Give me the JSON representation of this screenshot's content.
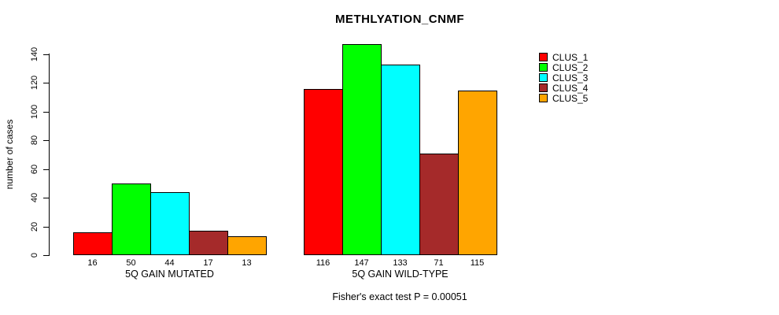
{
  "chart_data": {
    "type": "bar",
    "title": "METHLYATION_CNMF",
    "ylabel": "number of cases",
    "xlabel": "",
    "groups": [
      {
        "label": "5Q GAIN MUTATED",
        "values": [
          16,
          50,
          44,
          17,
          13
        ]
      },
      {
        "label": "5Q GAIN WILD-TYPE",
        "values": [
          116,
          147,
          133,
          71,
          115
        ]
      }
    ],
    "series": [
      {
        "name": "CLUS_1",
        "color": "#FF0000"
      },
      {
        "name": "CLUS_2",
        "color": "#00FF00"
      },
      {
        "name": "CLUS_3",
        "color": "#00FFFF"
      },
      {
        "name": "CLUS_4",
        "color": "#A52A2A"
      },
      {
        "name": "CLUS_5",
        "color": "#FFA500"
      }
    ],
    "y_ticks": [
      0,
      20,
      40,
      60,
      80,
      100,
      120,
      140
    ],
    "ylim": [
      0,
      147
    ],
    "grid": false,
    "legend_position": "right",
    "bar_values_shown_below_bars": true,
    "annotation": "Fisher's exact test P = 0.00051"
  }
}
